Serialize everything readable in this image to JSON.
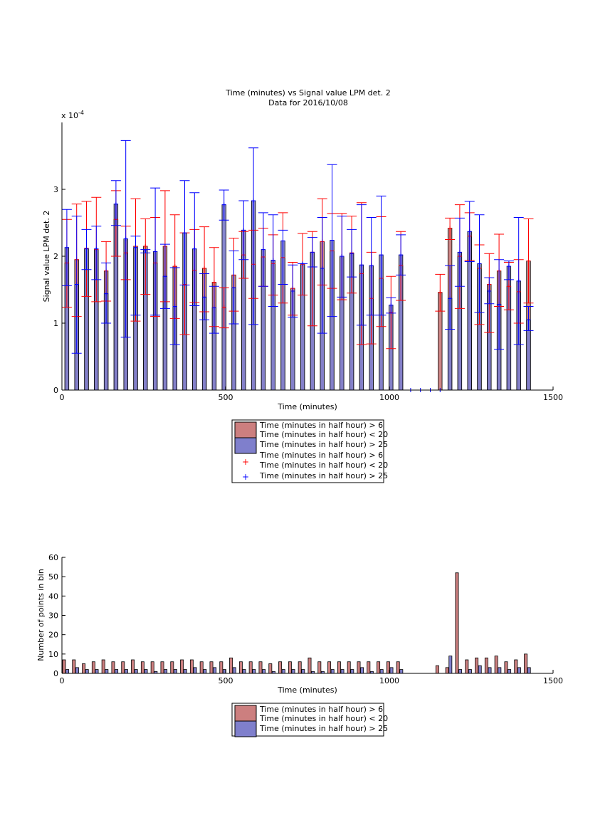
{
  "colors": {
    "red_fill": "#cc7f7f",
    "blue_fill": "#7f7fcc",
    "red_line": "#ff0000",
    "blue_line": "#0000ff"
  },
  "chart_data": [
    {
      "type": "bar",
      "title": "Time (minutes) vs Signal value LPM det. 2",
      "subtitle": "Data for 2016/10/08",
      "xlabel": "Time (minutes)",
      "ylabel": "Signal value LPM det. 2",
      "exponent_label": "x 10",
      "exponent_power": "-4",
      "xlim": [
        0,
        1500
      ],
      "ylim": [
        0,
        4
      ],
      "xticks": [
        "0",
        "500",
        "1000",
        "1500"
      ],
      "yticks": [
        "0",
        "1",
        "2",
        "3"
      ],
      "bin_width": 15,
      "bar_width": 12,
      "red": {
        "x": [
          15,
          45,
          75,
          105,
          135,
          165,
          195,
          225,
          255,
          285,
          315,
          345,
          375,
          405,
          435,
          465,
          495,
          525,
          555,
          585,
          615,
          645,
          675,
          705,
          735,
          765,
          795,
          825,
          855,
          885,
          915,
          945,
          975,
          1005,
          1035,
          1155,
          1185,
          1215,
          1245,
          1275,
          1305,
          1335,
          1365,
          1395,
          1425
        ],
        "values": [
          1.9,
          1.95,
          2.12,
          2.1,
          1.78,
          2.55,
          2.05,
          2.15,
          2.15,
          1.9,
          2.15,
          1.85,
          1.58,
          1.79,
          1.82,
          1.61,
          1.24,
          1.72,
          2.02,
          1.88,
          1.99,
          1.89,
          1.98,
          1.52,
          1.88,
          2.06,
          2.22,
          2.08,
          2.0,
          2.05,
          1.74,
          1.37,
          1.67,
          1.16,
          1.86,
          1.46,
          2.42,
          2.0,
          2.3,
          1.82,
          1.58,
          1.78,
          1.55,
          1.47,
          1.93
        ],
        "err_low": [
          1.24,
          1.1,
          1.4,
          1.32,
          1.33,
          2.0,
          1.65,
          1.03,
          1.43,
          1.1,
          1.32,
          1.07,
          0.83,
          1.31,
          1.17,
          0.95,
          0.93,
          1.18,
          1.67,
          1.37,
          1.55,
          1.42,
          1.3,
          1.12,
          1.42,
          0.96,
          1.57,
          1.52,
          1.35,
          1.45,
          0.68,
          0.69,
          0.95,
          0.62,
          1.34,
          1.18,
          2.25,
          1.22,
          1.94,
          0.98,
          0.86,
          1.25,
          1.2,
          1.0,
          1.3
        ],
        "err_high": [
          2.55,
          2.78,
          2.82,
          2.88,
          2.22,
          2.98,
          2.45,
          2.86,
          2.56,
          2.58,
          2.98,
          2.62,
          2.35,
          2.4,
          2.44,
          2.13,
          1.53,
          2.27,
          2.37,
          2.39,
          2.42,
          2.32,
          2.65,
          1.91,
          2.34,
          2.37,
          2.86,
          2.64,
          2.64,
          2.6,
          2.8,
          2.06,
          2.59,
          1.7,
          2.37,
          1.73,
          2.57,
          2.77,
          2.65,
          2.17,
          2.04,
          2.33,
          1.91,
          1.95,
          2.56
        ]
      },
      "blue": {
        "x": [
          15,
          45,
          75,
          105,
          135,
          165,
          195,
          225,
          255,
          285,
          315,
          345,
          375,
          405,
          435,
          465,
          495,
          525,
          555,
          585,
          615,
          645,
          675,
          705,
          735,
          765,
          795,
          825,
          855,
          885,
          915,
          945,
          975,
          1005,
          1035,
          1065,
          1095,
          1125,
          1155,
          1185,
          1215,
          1245,
          1275,
          1305,
          1335,
          1365,
          1395,
          1425
        ],
        "values": [
          2.13,
          1.58,
          2.11,
          2.11,
          1.44,
          2.78,
          2.26,
          2.13,
          2.08,
          2.07,
          1.7,
          1.25,
          2.35,
          2.11,
          1.39,
          1.23,
          2.77,
          1.53,
          2.39,
          2.83,
          2.1,
          1.94,
          2.23,
          1.48,
          1.89,
          2.06,
          1.82,
          2.24,
          2.0,
          2.04,
          1.87,
          1.86,
          2.02,
          1.27,
          2.02,
          0,
          0,
          0,
          0,
          1.37,
          2.06,
          2.37,
          1.89,
          1.48,
          1.28,
          1.85,
          1.63,
          1.05
        ],
        "err_low": [
          1.56,
          0.55,
          1.8,
          1.65,
          1.0,
          2.46,
          0.79,
          1.12,
          2.05,
          1.12,
          1.22,
          0.68,
          1.57,
          1.26,
          1.05,
          0.85,
          2.54,
          0.99,
          1.95,
          0.98,
          1.55,
          1.25,
          1.58,
          1.09,
          1.89,
          1.84,
          0.85,
          1.1,
          1.39,
          1.69,
          0.97,
          1.12,
          1.12,
          1.15,
          1.72,
          0,
          0,
          0,
          0,
          0.91,
          1.55,
          1.92,
          1.16,
          1.29,
          0.61,
          1.65,
          0.68,
          0.89
        ],
        "err_high": [
          2.7,
          2.6,
          2.4,
          2.45,
          1.9,
          3.13,
          3.73,
          2.3,
          2.1,
          3.02,
          2.18,
          1.83,
          3.13,
          2.95,
          1.74,
          1.55,
          2.99,
          2.08,
          2.83,
          3.62,
          2.65,
          2.62,
          2.39,
          1.87,
          1.89,
          2.28,
          2.58,
          3.37,
          2.6,
          2.4,
          2.77,
          2.58,
          2.9,
          1.38,
          2.32,
          0,
          0,
          0,
          0,
          1.86,
          2.57,
          2.82,
          2.62,
          1.68,
          1.95,
          1.93,
          2.58,
          1.25
        ]
      },
      "legend": [
        "Time (minutes in half hour) > 6",
        "Time (minutes in half hour) < 20",
        "Time (minutes in half hour) > 25",
        "Time (minutes in half hour) > 6",
        "Time (minutes in half hour) < 20",
        "Time (minutes in half hour) > 25"
      ]
    },
    {
      "type": "bar",
      "xlabel": "Time (minutes)",
      "ylabel": "Number of points in bin",
      "xlim": [
        0,
        1500
      ],
      "ylim": [
        0,
        60
      ],
      "xticks": [
        "0",
        "500",
        "1000",
        "1500"
      ],
      "yticks": [
        "0",
        "10",
        "20",
        "30",
        "40",
        "50",
        "60"
      ],
      "bin_width": 30,
      "bar_width": 9,
      "red": {
        "x": [
          0,
          30,
          60,
          90,
          120,
          150,
          180,
          210,
          240,
          270,
          300,
          330,
          360,
          390,
          420,
          450,
          480,
          510,
          540,
          570,
          600,
          630,
          660,
          690,
          720,
          750,
          780,
          810,
          840,
          870,
          900,
          930,
          960,
          990,
          1020,
          1140,
          1170,
          1200,
          1230,
          1260,
          1290,
          1320,
          1350,
          1380,
          1410
        ],
        "values": [
          7,
          7,
          5,
          6,
          7,
          6,
          6,
          7,
          6,
          6,
          6,
          6,
          7,
          7,
          6,
          6,
          6,
          8,
          6,
          6,
          6,
          5,
          6,
          6,
          6,
          8,
          6,
          6,
          6,
          6,
          6,
          6,
          6,
          6,
          6,
          4,
          3,
          52,
          7,
          8,
          8,
          9,
          6,
          7,
          10
        ]
      },
      "blue": {
        "x": [
          0,
          30,
          60,
          90,
          120,
          150,
          180,
          210,
          240,
          270,
          300,
          330,
          360,
          390,
          420,
          450,
          480,
          510,
          540,
          570,
          600,
          630,
          660,
          690,
          720,
          750,
          780,
          810,
          840,
          870,
          900,
          930,
          960,
          990,
          1020,
          1140,
          1170,
          1200,
          1230,
          1260,
          1290,
          1320,
          1350,
          1380,
          1410
        ],
        "values": [
          2,
          3,
          2,
          2,
          2,
          2,
          2,
          2,
          2,
          1,
          2,
          2,
          2,
          3,
          2,
          3,
          2,
          3,
          2,
          2,
          2,
          1,
          2,
          2,
          2,
          1,
          1,
          2,
          2,
          2,
          3,
          1,
          2,
          3,
          2,
          0,
          9,
          2,
          2,
          4,
          3,
          3,
          2,
          3,
          3
        ]
      },
      "legend": [
        "Time (minutes in half hour) > 6",
        "Time (minutes in half hour) < 20",
        "Time (minutes in half hour) > 25"
      ]
    }
  ]
}
